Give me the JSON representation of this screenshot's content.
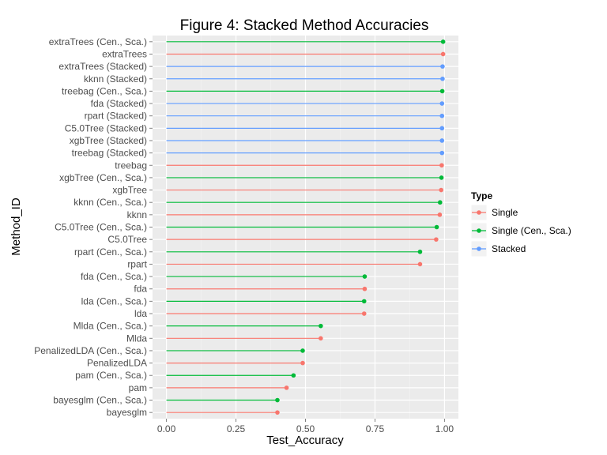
{
  "chart_data": {
    "type": "lollipop",
    "title": "Figure 4: Stacked Method Accuracies",
    "xlabel": "Test_Accuracy",
    "ylabel": "Method_ID",
    "xlim": [
      -0.05,
      1.05
    ],
    "x_ticks": [
      0.0,
      0.25,
      0.5,
      0.75,
      1.0
    ],
    "x_tick_labels": [
      "0.00",
      "0.25",
      "0.50",
      "0.75",
      "1.00"
    ],
    "grid": true,
    "legend": {
      "title": "Type",
      "position": "right",
      "entries": [
        {
          "name": "Single",
          "color": "#F8766D"
        },
        {
          "name": "Single (Cen., Sca.)",
          "color": "#00BA38"
        },
        {
          "name": "Stacked",
          "color": "#619CFF"
        }
      ]
    },
    "points": [
      {
        "method": "extraTrees (Cen., Sca.)",
        "type": "Single (Cen., Sca.)",
        "value": 0.995
      },
      {
        "method": "extraTrees",
        "type": "Single",
        "value": 0.995
      },
      {
        "method": "extraTrees (Stacked)",
        "type": "Stacked",
        "value": 0.993
      },
      {
        "method": "kknn (Stacked)",
        "type": "Stacked",
        "value": 0.993
      },
      {
        "method": "treebag (Cen., Sca.)",
        "type": "Single (Cen., Sca.)",
        "value": 0.992
      },
      {
        "method": "fda (Stacked)",
        "type": "Stacked",
        "value": 0.991
      },
      {
        "method": "rpart (Stacked)",
        "type": "Stacked",
        "value": 0.991
      },
      {
        "method": "C5.0Tree (Stacked)",
        "type": "Stacked",
        "value": 0.991
      },
      {
        "method": "xgbTree (Stacked)",
        "type": "Stacked",
        "value": 0.991
      },
      {
        "method": "treebag (Stacked)",
        "type": "Stacked",
        "value": 0.991
      },
      {
        "method": "treebag",
        "type": "Single",
        "value": 0.99
      },
      {
        "method": "xgbTree (Cen., Sca.)",
        "type": "Single (Cen., Sca.)",
        "value": 0.989
      },
      {
        "method": "xgbTree",
        "type": "Single",
        "value": 0.988
      },
      {
        "method": "kknn (Cen., Sca.)",
        "type": "Single (Cen., Sca.)",
        "value": 0.984
      },
      {
        "method": "kknn",
        "type": "Single",
        "value": 0.983
      },
      {
        "method": "C5.0Tree (Cen., Sca.)",
        "type": "Single (Cen., Sca.)",
        "value": 0.972
      },
      {
        "method": "C5.0Tree",
        "type": "Single",
        "value": 0.97
      },
      {
        "method": "rpart (Cen., Sca.)",
        "type": "Single (Cen., Sca.)",
        "value": 0.912
      },
      {
        "method": "rpart",
        "type": "Single",
        "value": 0.912
      },
      {
        "method": "fda (Cen., Sca.)",
        "type": "Single (Cen., Sca.)",
        "value": 0.713
      },
      {
        "method": "fda",
        "type": "Single",
        "value": 0.713
      },
      {
        "method": "lda (Cen., Sca.)",
        "type": "Single (Cen., Sca.)",
        "value": 0.711
      },
      {
        "method": "lda",
        "type": "Single",
        "value": 0.711
      },
      {
        "method": "Mlda (Cen., Sca.)",
        "type": "Single (Cen., Sca.)",
        "value": 0.555
      },
      {
        "method": "Mlda",
        "type": "Single",
        "value": 0.555
      },
      {
        "method": "PenalizedLDA (Cen., Sca.)",
        "type": "Single (Cen., Sca.)",
        "value": 0.49
      },
      {
        "method": "PenalizedLDA",
        "type": "Single",
        "value": 0.49
      },
      {
        "method": "pam (Cen., Sca.)",
        "type": "Single (Cen., Sca.)",
        "value": 0.457
      },
      {
        "method": "pam",
        "type": "Single",
        "value": 0.432
      },
      {
        "method": "bayesglm (Cen., Sca.)",
        "type": "Single (Cen., Sca.)",
        "value": 0.399
      },
      {
        "method": "bayesglm",
        "type": "Single",
        "value": 0.399
      }
    ]
  }
}
